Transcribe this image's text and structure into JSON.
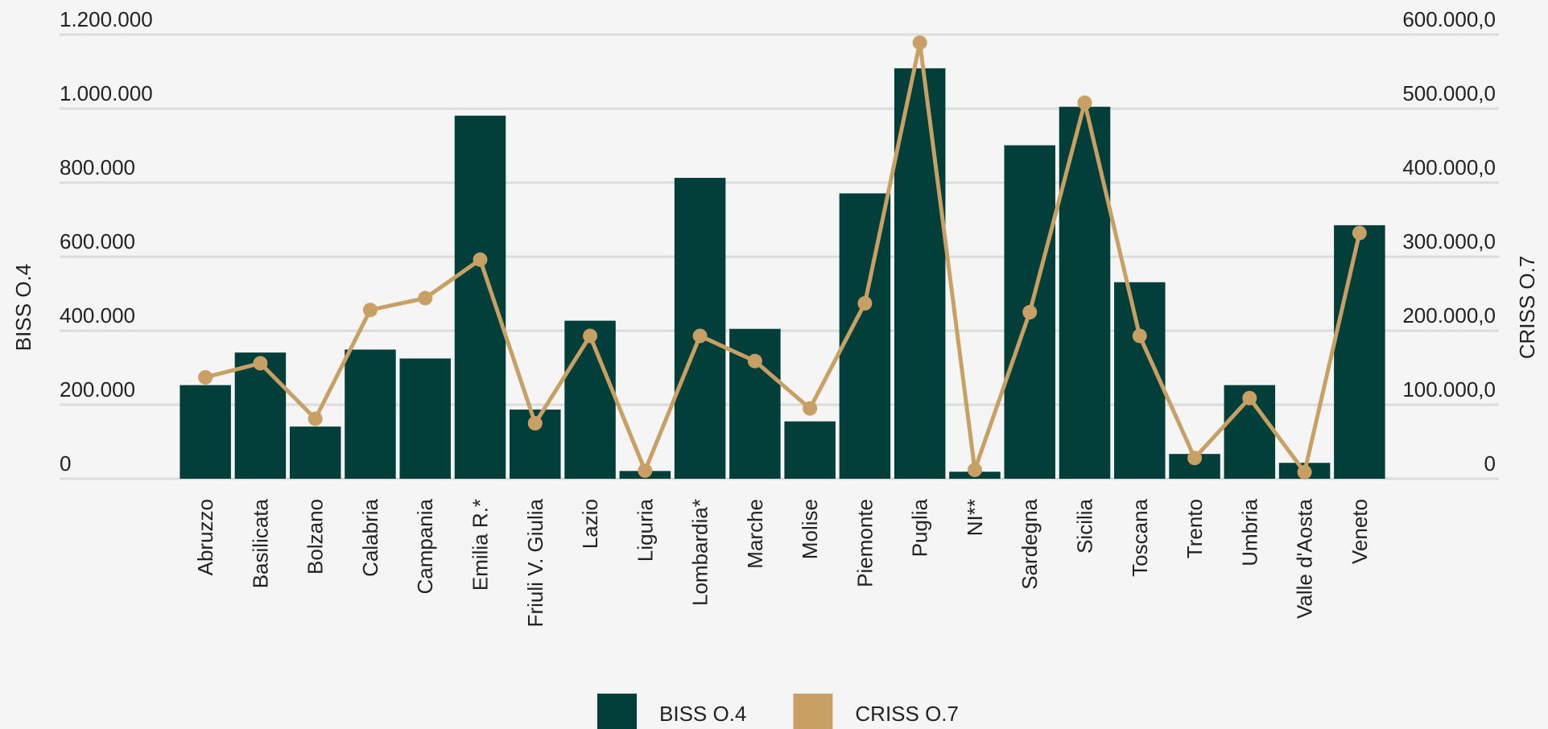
{
  "chart_data": {
    "type": "bar-line",
    "y_axis_label": "BISS O.4",
    "y2_axis_label": "CRISS O.7",
    "categories": [
      "Abruzzo",
      "Basilicata",
      "Bolzano",
      "Calabria",
      "Campania",
      "Emilia R.*",
      "Friuli V. Giulia",
      "Lazio",
      "Liguria",
      "Lombardia*",
      "Marche",
      "Molise",
      "Piemonte",
      "Puglia",
      "NI**",
      "Sardegna",
      "Sicilia",
      "Toscana",
      "Trento",
      "Umbria",
      "Valle d'Aosta",
      "Veneto"
    ],
    "series": [
      {
        "name": "BISS O.4",
        "type": "bar",
        "axis": "y",
        "color": "#023f3a",
        "values": [
          253000,
          341000,
          141000,
          349000,
          325000,
          981000,
          187000,
          427000,
          21000,
          813000,
          405000,
          155000,
          771000,
          1109000,
          19000,
          901000,
          1005000,
          531000,
          67000,
          253000,
          43000,
          685000
        ]
      },
      {
        "name": "CRISS O.7",
        "type": "line",
        "axis": "y2",
        "color": "#c9a063",
        "values": [
          137000,
          156000,
          81000,
          228000,
          244000,
          296000,
          75000,
          193000,
          11000,
          193000,
          159000,
          95000,
          237000,
          589000,
          12000,
          225000,
          508000,
          193000,
          28000,
          109000,
          9000,
          332000
        ]
      }
    ],
    "ylim": [
      0,
      1200000
    ],
    "yticks": [
      0,
      {
        "value": 200000,
        "label": "200.000"
      },
      {
        "value": 400000,
        "label": "400.000"
      },
      {
        "value": 600000,
        "label": "600.000"
      },
      {
        "value": 800000,
        "label": "800.000"
      },
      {
        "value": 1000000,
        "label": "1.000.000"
      },
      {
        "value": 1200000,
        "label": "1.200.000"
      }
    ],
    "y2lim": [
      0,
      600000
    ],
    "y2ticks": [
      0,
      {
        "value": 100000,
        "label": "100.000,0"
      },
      {
        "value": 200000,
        "label": "200.000,0"
      },
      {
        "value": 300000,
        "label": "300.000,0"
      },
      {
        "value": 400000,
        "label": "400.000,0"
      },
      {
        "value": 500000,
        "label": "500.000,0"
      },
      {
        "value": 600000,
        "label": "600.000,0"
      }
    ],
    "grid": true,
    "legend": "bottom"
  }
}
